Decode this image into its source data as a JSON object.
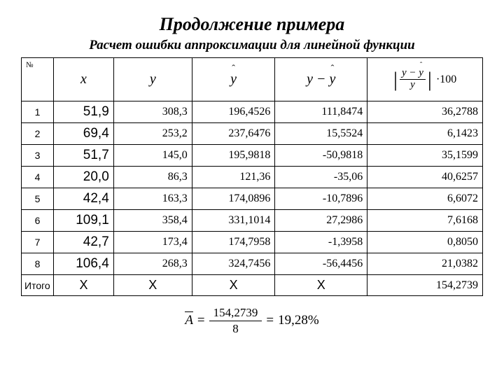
{
  "title": "Продолжение примера",
  "subtitle": "Расчет ошибки аппроксимации для линейной функции",
  "headers": {
    "num": "№",
    "x": "x",
    "y": "y",
    "yhat_base": "y",
    "diff_left": "y",
    "diff_minus": " − ",
    "diff_right_base": "y",
    "err_frac_top_left": "y",
    "err_frac_top_minus": " − ",
    "err_frac_top_right": "y",
    "err_frac_bot": "y",
    "err_mult": "·100"
  },
  "rows": [
    {
      "n": "1",
      "x": "51,9",
      "y": "308,3",
      "yhat": "196,4526",
      "diff": "111,8474",
      "err": "36,2788"
    },
    {
      "n": "2",
      "x": "69,4",
      "y": "253,2",
      "yhat": "237,6476",
      "diff": "15,5524",
      "err": "6,1423"
    },
    {
      "n": "3",
      "x": "51,7",
      "y": "145,0",
      "yhat": "195,9818",
      "diff": "-50,9818",
      "err": "35,1599"
    },
    {
      "n": "4",
      "x": "20,0",
      "y": "86,3",
      "yhat": "121,36",
      "diff": "-35,06",
      "err": "40,6257"
    },
    {
      "n": "5",
      "x": "42,4",
      "y": "163,3",
      "yhat": "174,0896",
      "diff": "-10,7896",
      "err": "6,6072"
    },
    {
      "n": "6",
      "x": "109,1",
      "y": "358,4",
      "yhat": "331,1014",
      "diff": "27,2986",
      "err": "7,6168"
    },
    {
      "n": "7",
      "x": "42,7",
      "y": "173,4",
      "yhat": "174,7958",
      "diff": "-1,3958",
      "err": "0,8050"
    },
    {
      "n": "8",
      "x": "106,4",
      "y": "268,3",
      "yhat": "324,7456",
      "diff": "-56,4456",
      "err": "21,0382"
    }
  ],
  "totals": {
    "label": "Итого",
    "x": "Х",
    "y": "Х",
    "yhat": "Х",
    "diff": "Х",
    "err": "154,2739"
  },
  "bottom": {
    "A": "A",
    "eq1": "=",
    "frac_top": "154,2739",
    "frac_bot": "8",
    "eq2": "=",
    "result": "19,28%"
  },
  "colors": {
    "text": "#000000",
    "background": "#ffffff",
    "border": "#000000"
  }
}
